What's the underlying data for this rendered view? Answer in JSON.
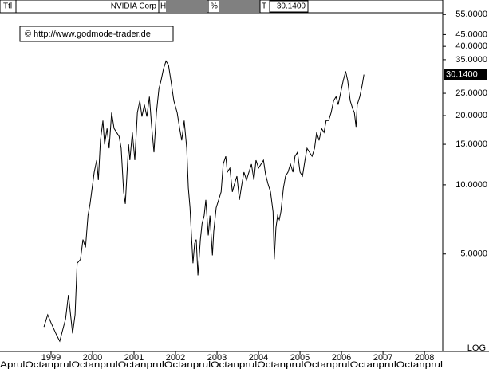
{
  "header": {
    "ttl": "Ttl",
    "name": "NVIDIA Corp",
    "h": "H",
    "pct": "%",
    "t": "T",
    "last": "30.1400"
  },
  "watermark": "© http://www.godmode-trader.de",
  "chart_data": {
    "type": "line",
    "log_scale": true,
    "log_label": "LOG",
    "color": "#000000",
    "month_strip": "AprulOctanprulOctanprulOctanprulOctanprulOctanprulOctanprulOctanprulOctanprulOctanprul",
    "xlim": [
      1997.77,
      2008.44
    ],
    "xticks": [
      1999,
      2000,
      2001,
      2002,
      2003,
      2004,
      2005,
      2006,
      2007,
      2008
    ],
    "ylim": [
      1.9,
      56
    ],
    "yticks": [
      {
        "value": 5,
        "label": "5.0000"
      },
      {
        "value": 10,
        "label": "10.0000"
      },
      {
        "value": 15,
        "label": "15.0000"
      },
      {
        "value": 20,
        "label": "20.0000"
      },
      {
        "value": 25,
        "label": "25.0000"
      },
      {
        "value": 35,
        "label": "35.0000"
      },
      {
        "value": 40,
        "label": "40.0000"
      },
      {
        "value": 45,
        "label": "45.0000"
      },
      {
        "value": 55,
        "label": "55.0000"
      }
    ],
    "x": [
      1998.83,
      1998.92,
      1999.0,
      1999.13,
      1999.21,
      1999.35,
      1999.42,
      1999.52,
      1999.58,
      1999.63,
      1999.71,
      1999.77,
      1999.83,
      1999.89,
      1999.94,
      2000.04,
      2000.1,
      2000.14,
      2000.19,
      2000.25,
      2000.29,
      2000.35,
      2000.4,
      2000.46,
      2000.52,
      2000.64,
      2000.69,
      2000.75,
      2000.79,
      2000.87,
      2000.9,
      2000.96,
      2001.02,
      2001.08,
      2001.14,
      2001.19,
      2001.25,
      2001.31,
      2001.37,
      2001.42,
      2001.48,
      2001.54,
      2001.6,
      2001.65,
      2001.71,
      2001.77,
      2001.83,
      2001.89,
      2001.96,
      2002.04,
      2002.1,
      2002.15,
      2002.21,
      2002.27,
      2002.31,
      2002.35,
      2002.39,
      2002.42,
      2002.46,
      2002.5,
      2002.54,
      2002.6,
      2002.64,
      2002.69,
      2002.73,
      2002.79,
      2002.83,
      2002.89,
      2002.92,
      2002.98,
      2003.04,
      2003.1,
      2003.15,
      2003.21,
      2003.25,
      2003.31,
      2003.37,
      2003.42,
      2003.48,
      2003.54,
      2003.6,
      2003.65,
      2003.71,
      2003.83,
      2003.89,
      2003.94,
      2004.0,
      2004.12,
      2004.17,
      2004.23,
      2004.29,
      2004.35,
      2004.38,
      2004.42,
      2004.46,
      2004.5,
      2004.54,
      2004.6,
      2004.65,
      2004.71,
      2004.77,
      2004.83,
      2004.88,
      2004.94,
      2005.0,
      2005.06,
      2005.12,
      2005.17,
      2005.29,
      2005.35,
      2005.4,
      2005.46,
      2005.52,
      2005.58,
      2005.63,
      2005.69,
      2005.75,
      2005.81,
      2005.87,
      2005.92,
      2005.98,
      2006.04,
      2006.1,
      2006.15,
      2006.21,
      2006.27,
      2006.31,
      2006.35,
      2006.38,
      2006.44,
      2006.5,
      2006.54
    ],
    "values": [
      2.41,
      2.72,
      2.51,
      2.23,
      2.09,
      2.61,
      3.32,
      2.26,
      2.72,
      4.56,
      4.74,
      5.78,
      5.34,
      7.34,
      8.26,
      11.35,
      12.79,
      10.49,
      15.6,
      19.03,
      14.99,
      17.58,
      14.41,
      20.6,
      17.58,
      16.24,
      14.41,
      9.31,
      8.26,
      14.99,
      12.79,
      16.89,
      12.79,
      20.6,
      23.21,
      19.8,
      22.3,
      19.8,
      24.16,
      18.29,
      13.85,
      20.6,
      26.14,
      28.32,
      31.9,
      34.52,
      33.17,
      28.32,
      23.21,
      20.6,
      17.58,
      15.6,
      19.03,
      14.41,
      9.69,
      7.95,
      5.78,
      4.56,
      5.56,
      5.78,
      4.04,
      5.78,
      6.78,
      7.34,
      8.6,
      6.02,
      7.34,
      4.93,
      6.26,
      7.95,
      8.6,
      9.31,
      12.3,
      13.31,
      11.35,
      11.82,
      9.31,
      10.08,
      10.91,
      8.6,
      10.08,
      11.35,
      10.49,
      12.3,
      10.49,
      12.79,
      11.82,
      12.79,
      11.09,
      10.08,
      9.31,
      7.63,
      4.74,
      6.51,
      7.34,
      7.05,
      7.63,
      9.69,
      10.91,
      11.35,
      12.3,
      11.35,
      13.31,
      13.85,
      11.35,
      10.91,
      12.79,
      14.41,
      13.31,
      14.41,
      16.89,
      15.6,
      17.58,
      16.89,
      19.03,
      19.03,
      20.6,
      23.21,
      24.16,
      22.3,
      25.12,
      28.32,
      31.14,
      28.32,
      23.21,
      21.43,
      20.6,
      17.86,
      22.3,
      24.16,
      27.21,
      30.14
    ]
  }
}
